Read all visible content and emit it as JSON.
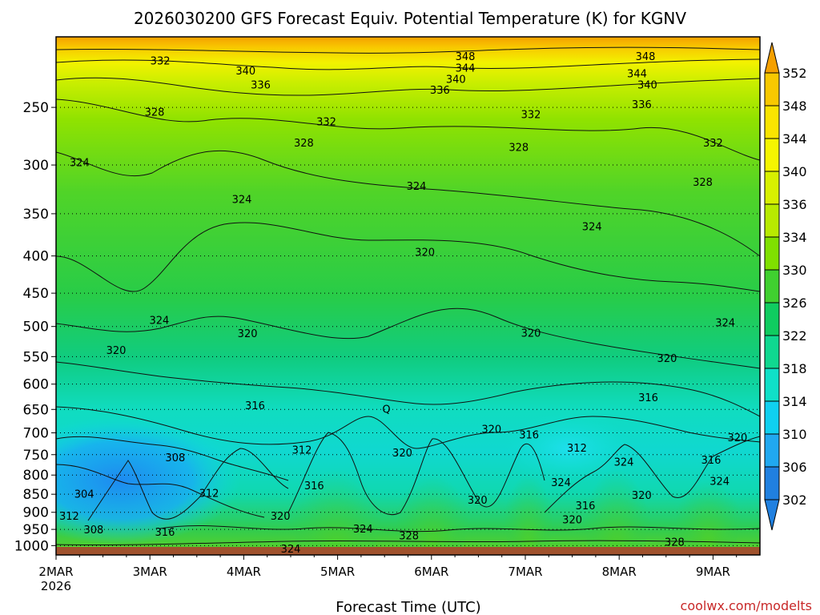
{
  "chart_data": {
    "type": "heatmap",
    "title": "2026030200 GFS Forecast Equiv. Potential Temperature (K) for KGNV",
    "xlabel": "Forecast Time (UTC)",
    "credit": "coolwx.com/modelts",
    "x_ticks": [
      {
        "label": "2MAR",
        "sublabel": "2026",
        "day": 0
      },
      {
        "label": "3MAR",
        "day": 1
      },
      {
        "label": "4MAR",
        "day": 2
      },
      {
        "label": "5MAR",
        "day": 3
      },
      {
        "label": "6MAR",
        "day": 4
      },
      {
        "label": "7MAR",
        "day": 5
      },
      {
        "label": "8MAR",
        "day": 6
      },
      {
        "label": "9MAR",
        "day": 7
      }
    ],
    "xlim": [
      0,
      7.5
    ],
    "y_ticks": [
      250,
      300,
      350,
      400,
      450,
      500,
      550,
      600,
      650,
      700,
      750,
      800,
      850,
      900,
      950,
      1000
    ],
    "ylim": [
      1030,
      200
    ],
    "y_scale": "log",
    "grid": "dotted",
    "colorbar": {
      "position": "right",
      "labels": [
        352,
        348,
        344,
        340,
        336,
        334,
        330,
        326,
        322,
        318,
        314,
        310,
        306,
        302
      ],
      "colors": [
        "#f5a000",
        "#f8c800",
        "#fae400",
        "#f5f500",
        "#d8f000",
        "#b8ea00",
        "#80e000",
        "#40d030",
        "#10cc60",
        "#10d890",
        "#10e0c8",
        "#10d0f0",
        "#20a8f0",
        "#2080e0"
      ],
      "extend": "both"
    },
    "contour_labels": [
      {
        "t": 1.11,
        "p": 216,
        "v": "332"
      },
      {
        "t": 2.02,
        "p": 223,
        "v": "340"
      },
      {
        "t": 2.18,
        "p": 233,
        "v": "336"
      },
      {
        "t": 1.05,
        "p": 254,
        "v": "328"
      },
      {
        "t": 0.25,
        "p": 298,
        "v": "324"
      },
      {
        "t": 1.98,
        "p": 335,
        "v": "324"
      },
      {
        "t": 2.88,
        "p": 262,
        "v": "332"
      },
      {
        "t": 2.64,
        "p": 280,
        "v": "328"
      },
      {
        "t": 3.84,
        "p": 321,
        "v": "324"
      },
      {
        "t": 3.93,
        "p": 396,
        "v": "320"
      },
      {
        "t": 4.36,
        "p": 213,
        "v": "348"
      },
      {
        "t": 4.36,
        "p": 221,
        "v": "344"
      },
      {
        "t": 4.26,
        "p": 229,
        "v": "340"
      },
      {
        "t": 4.09,
        "p": 237,
        "v": "336"
      },
      {
        "t": 5.06,
        "p": 256,
        "v": "332"
      },
      {
        "t": 4.93,
        "p": 284,
        "v": "328"
      },
      {
        "t": 6.28,
        "p": 213,
        "v": "348"
      },
      {
        "t": 6.19,
        "p": 225,
        "v": "344"
      },
      {
        "t": 6.3,
        "p": 233,
        "v": "340"
      },
      {
        "t": 6.24,
        "p": 248,
        "v": "336"
      },
      {
        "t": 7.0,
        "p": 280,
        "v": "332"
      },
      {
        "t": 6.89,
        "p": 317,
        "v": "328"
      },
      {
        "t": 5.71,
        "p": 365,
        "v": "324"
      },
      {
        "t": 7.13,
        "p": 495,
        "v": "324"
      },
      {
        "t": 1.1,
        "p": 491,
        "v": "324"
      },
      {
        "t": 2.04,
        "p": 512,
        "v": "320"
      },
      {
        "t": 5.06,
        "p": 511,
        "v": "320"
      },
      {
        "t": 6.51,
        "p": 554,
        "v": "320"
      },
      {
        "t": 0.64,
        "p": 540,
        "v": "320"
      },
      {
        "t": 2.12,
        "p": 643,
        "v": "316"
      },
      {
        "t": 6.31,
        "p": 627,
        "v": "316"
      },
      {
        "t": 3.52,
        "p": 650,
        "v": "Q"
      },
      {
        "t": 4.64,
        "p": 693,
        "v": "320"
      },
      {
        "t": 5.04,
        "p": 705,
        "v": "316"
      },
      {
        "t": 5.55,
        "p": 735,
        "v": "312"
      },
      {
        "t": 1.27,
        "p": 758,
        "v": "308"
      },
      {
        "t": 2.62,
        "p": 740,
        "v": "312"
      },
      {
        "t": 3.69,
        "p": 747,
        "v": "320"
      },
      {
        "t": 0.3,
        "p": 851,
        "v": "304"
      },
      {
        "t": 0.14,
        "p": 912,
        "v": "312"
      },
      {
        "t": 0.4,
        "p": 952,
        "v": "308"
      },
      {
        "t": 1.63,
        "p": 849,
        "v": "312"
      },
      {
        "t": 2.75,
        "p": 828,
        "v": "316"
      },
      {
        "t": 2.39,
        "p": 912,
        "v": "320"
      },
      {
        "t": 1.16,
        "p": 959,
        "v": "316"
      },
      {
        "t": 3.27,
        "p": 950,
        "v": "324"
      },
      {
        "t": 3.76,
        "p": 970,
        "v": "328"
      },
      {
        "t": 2.5,
        "p": 1012,
        "v": "324"
      },
      {
        "t": 5.38,
        "p": 820,
        "v": "324"
      },
      {
        "t": 6.05,
        "p": 769,
        "v": "324"
      },
      {
        "t": 5.64,
        "p": 882,
        "v": "316"
      },
      {
        "t": 5.5,
        "p": 922,
        "v": "320"
      },
      {
        "t": 4.49,
        "p": 867,
        "v": "320"
      },
      {
        "t": 6.24,
        "p": 854,
        "v": "320"
      },
      {
        "t": 6.98,
        "p": 764,
        "v": "316"
      },
      {
        "t": 7.07,
        "p": 817,
        "v": "324"
      },
      {
        "t": 7.26,
        "p": 712,
        "v": "320"
      },
      {
        "t": 6.59,
        "p": 990,
        "v": "328"
      }
    ]
  }
}
